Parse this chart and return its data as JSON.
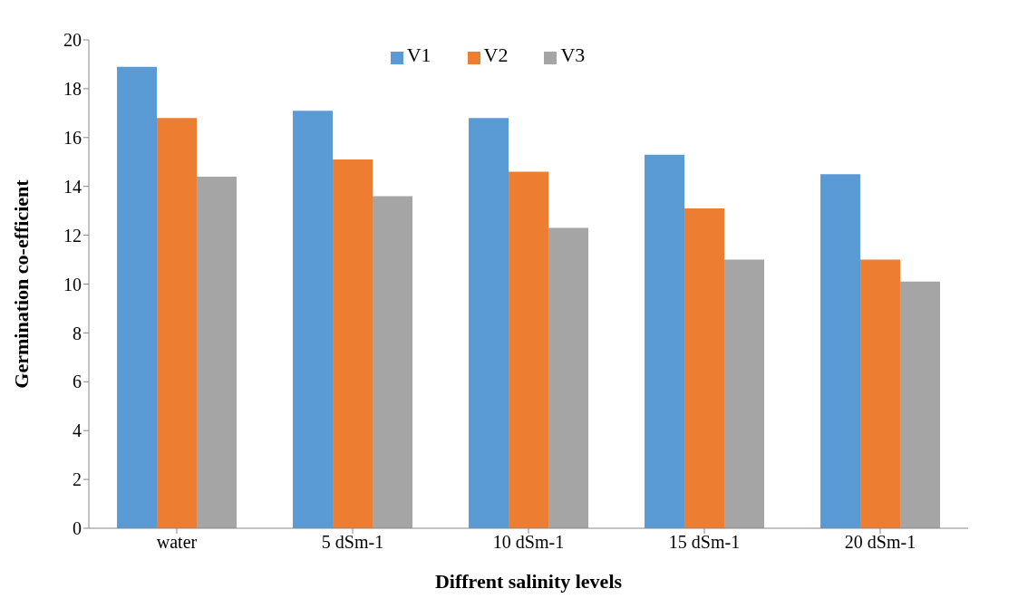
{
  "chart_data": {
    "type": "bar",
    "xlabel": "Diffrent salinity levels",
    "ylabel": "Germination co-efficient",
    "categories": [
      "water",
      "5 dSm-1",
      "10 dSm-1",
      "15 dSm-1",
      "20 dSm-1"
    ],
    "series": [
      {
        "name": "V1",
        "color": "#5b9bd5",
        "values": [
          18.9,
          17.1,
          16.8,
          15.3,
          14.5
        ]
      },
      {
        "name": "V2",
        "color": "#ed7d31",
        "values": [
          16.8,
          15.1,
          14.6,
          13.1,
          11.0
        ]
      },
      {
        "name": "V3",
        "color": "#a5a5a5",
        "values": [
          14.4,
          13.6,
          12.3,
          11.0,
          10.1
        ]
      }
    ],
    "ylim": [
      0,
      20
    ],
    "yticks": [
      0,
      2,
      4,
      6,
      8,
      10,
      12,
      14,
      16,
      18,
      20
    ],
    "grid": false,
    "legend": "top"
  }
}
